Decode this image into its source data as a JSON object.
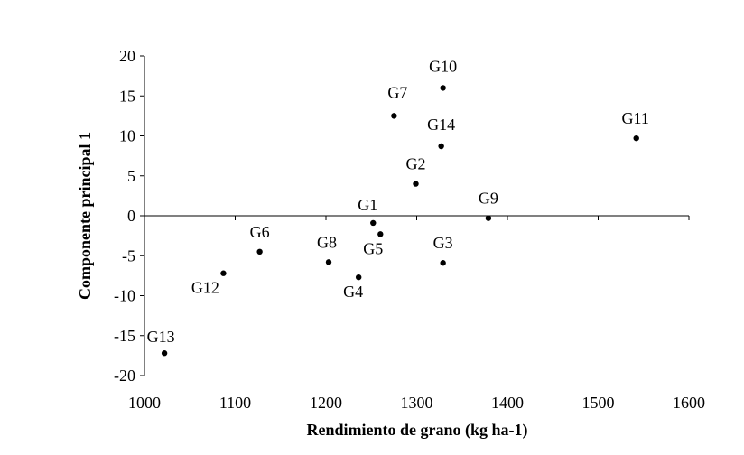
{
  "chart_data": {
    "type": "scatter",
    "xlabel": "Rendimiento de grano (kg ha-1)",
    "ylabel": "Componente principal 1",
    "xlim": [
      1000,
      1600
    ],
    "ylim": [
      -20,
      20
    ],
    "x_ticks": [
      "1000",
      "1100",
      "1200",
      "1300",
      "1400",
      "1500",
      "1600"
    ],
    "y_ticks": [
      "20",
      "15",
      "10",
      "5",
      "0",
      "-5",
      "-10",
      "-15",
      "-20"
    ],
    "grid": false,
    "legend": "none",
    "marker_color": "#000000",
    "points": [
      {
        "label": "G1",
        "x": 1252,
        "y": -0.9
      },
      {
        "label": "G2",
        "x": 1299,
        "y": 4.0
      },
      {
        "label": "G3",
        "x": 1329,
        "y": -5.9
      },
      {
        "label": "G4",
        "x": 1236,
        "y": -7.7
      },
      {
        "label": "G5",
        "x": 1260,
        "y": -2.3
      },
      {
        "label": "G6",
        "x": 1127,
        "y": -4.5
      },
      {
        "label": "G7",
        "x": 1275,
        "y": 12.5
      },
      {
        "label": "G8",
        "x": 1203,
        "y": -5.8
      },
      {
        "label": "G9",
        "x": 1379,
        "y": -0.3
      },
      {
        "label": "G10",
        "x": 1329,
        "y": 16.0
      },
      {
        "label": "G11",
        "x": 1542,
        "y": 9.7
      },
      {
        "label": "G12",
        "x": 1087,
        "y": -7.2
      },
      {
        "label": "G13",
        "x": 1022,
        "y": -17.2
      },
      {
        "label": "G14",
        "x": 1327,
        "y": 8.7
      }
    ]
  }
}
